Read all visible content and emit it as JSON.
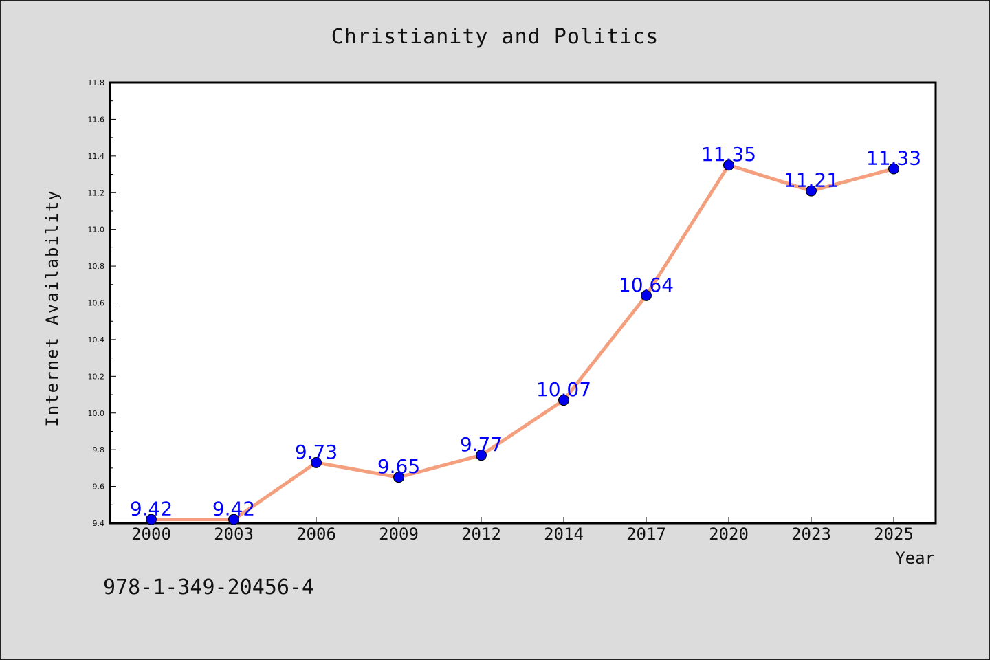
{
  "chart_data": {
    "type": "line",
    "title": "Christianity and Politics",
    "xlabel": "Year",
    "ylabel": "Internet Availability",
    "categories": [
      "2000",
      "2003",
      "2006",
      "2009",
      "2012",
      "2014",
      "2017",
      "2020",
      "2023",
      "2025"
    ],
    "series": [
      {
        "values": [
          9.42,
          9.42,
          9.73,
          9.65,
          9.77,
          10.07,
          10.64,
          11.35,
          11.21,
          11.33
        ],
        "line_color": "#f4a07e",
        "marker_color": "#0000ee"
      }
    ],
    "data_labels": [
      "9.42",
      "9.42",
      "9.73",
      "9.65",
      "9.77",
      "10.07",
      "10.64",
      "11.35",
      "11.21",
      "11.33"
    ],
    "data_label_color": "#0000ff",
    "ylim": [
      9.4,
      11.8
    ],
    "yticks": [
      "9.4",
      "9.6",
      "9.8",
      "10.0",
      "10.2",
      "10.4",
      "10.6",
      "10.8",
      "11.0",
      "11.2",
      "11.4",
      "11.6",
      "11.8"
    ],
    "grid": false,
    "legend": "none"
  },
  "footer": {
    "isbn": "978-1-349-20456-4"
  }
}
